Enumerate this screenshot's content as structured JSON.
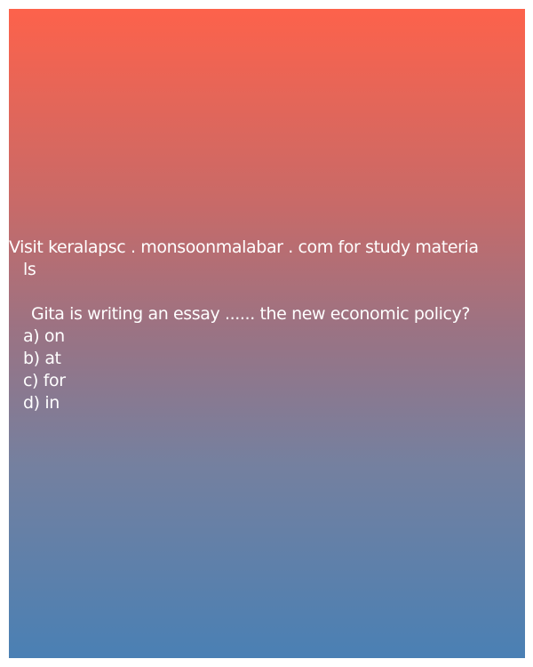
{
  "header": {
    "line1": "Visit keralapsc . monsoonmalabar . com for study materia",
    "line2": "ls"
  },
  "question": {
    "text": "Gita is writing an essay ...... the new economic policy?",
    "options": [
      "a) on",
      "b) at",
      "c) for",
      "d) in"
    ]
  },
  "colors": {
    "gradient_top": "#fd624b",
    "gradient_bottom": "#4a80b4",
    "text": "#ffffff"
  }
}
